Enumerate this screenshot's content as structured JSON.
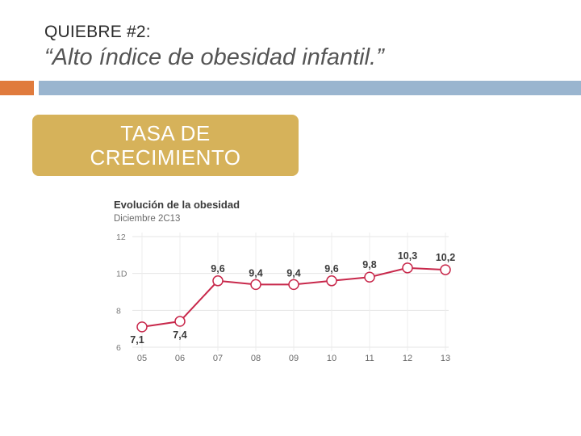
{
  "slide": {
    "kicker": "QUIEBRE #2:",
    "title": "“Alto índice de obesidad infantil.”",
    "box_text": "TASA DE CRECIMIENTO",
    "colors": {
      "orange": "#e07b3d",
      "blue_bar": "#9ab5cf",
      "gold_box": "#d6b25a"
    }
  },
  "chart_data": {
    "type": "line",
    "title": "Evolución de la obesidad",
    "subtitle": "Diciembre 2C13",
    "categories": [
      "05",
      "06",
      "07",
      "08",
      "09",
      "10",
      "11",
      "12",
      "13"
    ],
    "values": [
      7.1,
      7.4,
      9.6,
      9.4,
      9.4,
      9.6,
      9.8,
      10.3,
      10.2
    ],
    "value_labels": [
      "7,1",
      "7,4",
      "9,6",
      "9,4",
      "9,4",
      "9,6",
      "9,8",
      "10,3",
      "10,2"
    ],
    "yticks": [
      6,
      8,
      10,
      12
    ],
    "ytick_labels": [
      "6",
      "8",
      "1D",
      "12"
    ],
    "ylim": [
      6,
      12
    ],
    "xlabel": "",
    "ylabel": "",
    "grid": true,
    "line_color": "#c8284b"
  }
}
